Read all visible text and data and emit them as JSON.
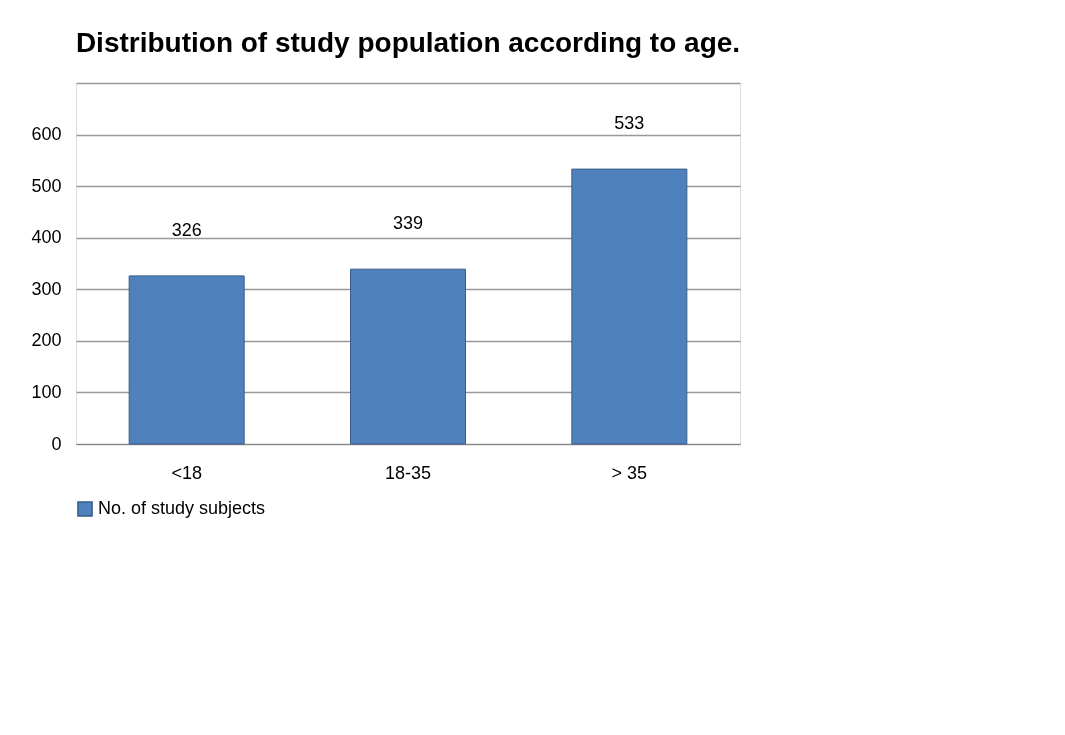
{
  "chart_data": {
    "type": "bar",
    "title": "Distribution of study population according to age.",
    "categories": [
      "<18",
      "18-35",
      "> 35"
    ],
    "series": [
      {
        "name": "No. of study subjects",
        "color": "#4f81bd",
        "values": [
          326,
          339,
          533
        ]
      }
    ],
    "ylim": [
      0,
      700
    ],
    "yticks": [
      0,
      100,
      200,
      300,
      400,
      500,
      600,
      {
        "value": 700,
        "label": null
      }
    ],
    "grid": "y",
    "legend": "bottom",
    "data_labels": true
  }
}
